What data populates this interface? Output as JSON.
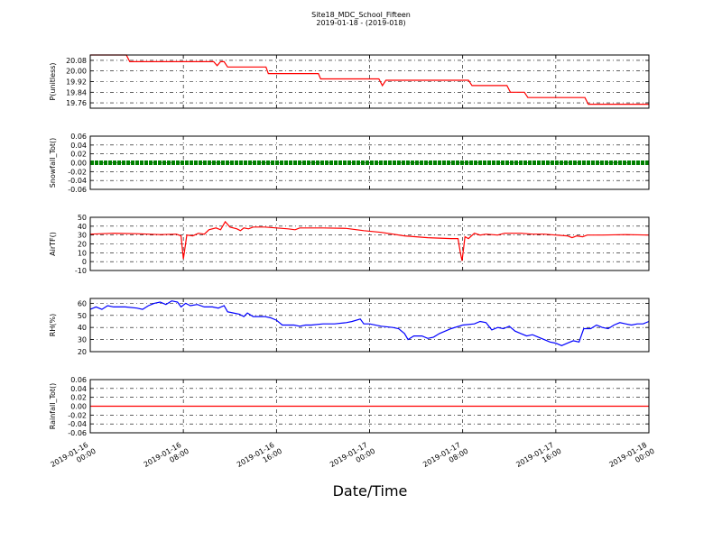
{
  "chart_data": {
    "title": "Site18_MDC_School_Fifteen",
    "subtitle": "2019-01-18 - (2019-018)",
    "xlabel": "Date/Time",
    "x_ticks": [
      "2019-01-16\n00:00",
      "2019-01-16\n08:00",
      "2019-01-16\n16:00",
      "2019-01-17\n00:00",
      "2019-01-17\n08:00",
      "2019-01-17\n16:00",
      "2019-01-18\n00:00"
    ],
    "x_range_hours": [
      0,
      48
    ],
    "grid": true,
    "panels": [
      {
        "type": "line",
        "ylabel": "P(unitless)",
        "color": "#ff0000",
        "ylim": [
          19.72,
          20.12
        ],
        "yticks": [
          19.76,
          19.84,
          19.92,
          20.0,
          20.08
        ],
        "ytick_labels": [
          "19.76",
          "19.84",
          "19.92",
          "20.00",
          "20.08"
        ],
        "points": [
          [
            0,
            20.12
          ],
          [
            3.1,
            20.12
          ],
          [
            3.4,
            20.07
          ],
          [
            10.6,
            20.07
          ],
          [
            10.9,
            20.04
          ],
          [
            11.2,
            20.07
          ],
          [
            11.5,
            20.07
          ],
          [
            11.8,
            20.03
          ],
          [
            15.1,
            20.03
          ],
          [
            15.3,
            19.98
          ],
          [
            19.6,
            19.98
          ],
          [
            19.8,
            19.94
          ],
          [
            24.8,
            19.94
          ],
          [
            25.1,
            19.89
          ],
          [
            25.4,
            19.93
          ],
          [
            32.5,
            19.93
          ],
          [
            32.8,
            19.89
          ],
          [
            35.8,
            19.89
          ],
          [
            36.1,
            19.84
          ],
          [
            37.3,
            19.84
          ],
          [
            37.6,
            19.8
          ],
          [
            42.5,
            19.8
          ],
          [
            42.8,
            19.75
          ],
          [
            48,
            19.75
          ]
        ]
      },
      {
        "type": "line",
        "ylabel": "Snowfall_Tot()",
        "color": "#008000",
        "marker": "square",
        "ylim": [
          -0.06,
          0.06
        ],
        "yticks": [
          -0.06,
          -0.04,
          -0.02,
          0.0,
          0.02,
          0.04,
          0.06
        ],
        "ytick_labels": [
          "-0.06",
          "-0.04",
          "-0.02",
          "0.00",
          "0.02",
          "0.04",
          "0.06"
        ],
        "constant": 0.0
      },
      {
        "type": "line",
        "ylabel": "AirTF()",
        "color": "#ff0000",
        "ylim": [
          -10,
          50
        ],
        "yticks": [
          -10,
          0,
          10,
          20,
          30,
          40,
          50
        ],
        "ytick_labels": [
          "-10",
          "0",
          "10",
          "20",
          "30",
          "40",
          "50"
        ],
        "points": [
          [
            0,
            31
          ],
          [
            2,
            32
          ],
          [
            4,
            31.5
          ],
          [
            6,
            30.5
          ],
          [
            7.4,
            31
          ],
          [
            7.8,
            29
          ],
          [
            8,
            3
          ],
          [
            8.3,
            30
          ],
          [
            8.8,
            29
          ],
          [
            9.3,
            32
          ],
          [
            9.8,
            31
          ],
          [
            10.2,
            36
          ],
          [
            10.8,
            38
          ],
          [
            11.2,
            36
          ],
          [
            11.6,
            45
          ],
          [
            12,
            39
          ],
          [
            12.6,
            37
          ],
          [
            12.9,
            35
          ],
          [
            13.2,
            38
          ],
          [
            13.6,
            37
          ],
          [
            14,
            39
          ],
          [
            15,
            39
          ],
          [
            16,
            38
          ],
          [
            17,
            37
          ],
          [
            17.6,
            36
          ],
          [
            18,
            38
          ],
          [
            20,
            38
          ],
          [
            22,
            37.5
          ],
          [
            23.5,
            35
          ],
          [
            25,
            33
          ],
          [
            27,
            29
          ],
          [
            29,
            27
          ],
          [
            31,
            26
          ],
          [
            31.6,
            26
          ],
          [
            31.8,
            10
          ],
          [
            31.95,
            1
          ],
          [
            32.2,
            28
          ],
          [
            32.5,
            26
          ],
          [
            33,
            32
          ],
          [
            33.5,
            30
          ],
          [
            34,
            31
          ],
          [
            35,
            30
          ],
          [
            35.6,
            32
          ],
          [
            37,
            32
          ],
          [
            38,
            31
          ],
          [
            39,
            31
          ],
          [
            40,
            30
          ],
          [
            41,
            29
          ],
          [
            41.4,
            27
          ],
          [
            41.8,
            29
          ],
          [
            42.3,
            28
          ],
          [
            42.7,
            30
          ],
          [
            44,
            30
          ],
          [
            46,
            30.5
          ],
          [
            48,
            30
          ]
        ]
      },
      {
        "type": "line",
        "ylabel": "RH(%)",
        "color": "#0000ff",
        "ylim": [
          20,
          64
        ],
        "yticks": [
          20,
          30,
          40,
          50,
          60
        ],
        "ytick_labels": [
          "20",
          "30",
          "40",
          "50",
          "60"
        ],
        "points": [
          [
            0,
            55
          ],
          [
            0.5,
            57
          ],
          [
            1,
            55
          ],
          [
            1.5,
            58
          ],
          [
            2,
            57
          ],
          [
            3,
            57
          ],
          [
            4,
            56
          ],
          [
            4.5,
            55
          ],
          [
            5,
            58
          ],
          [
            5.5,
            60
          ],
          [
            6,
            61
          ],
          [
            6.5,
            59
          ],
          [
            7,
            62
          ],
          [
            7.5,
            61
          ],
          [
            7.8,
            57
          ],
          [
            8.2,
            60
          ],
          [
            8.6,
            58
          ],
          [
            9.2,
            59
          ],
          [
            9.8,
            57
          ],
          [
            10.5,
            57
          ],
          [
            11,
            56
          ],
          [
            11.5,
            58
          ],
          [
            11.8,
            53
          ],
          [
            12.3,
            52
          ],
          [
            12.8,
            51
          ],
          [
            13.2,
            49
          ],
          [
            13.5,
            52
          ],
          [
            14,
            49
          ],
          [
            15,
            49
          ],
          [
            15.5,
            48
          ],
          [
            16,
            46
          ],
          [
            16.5,
            42
          ],
          [
            17.5,
            42
          ],
          [
            18,
            41
          ],
          [
            18.5,
            42
          ],
          [
            19,
            42
          ],
          [
            20,
            43
          ],
          [
            21,
            43
          ],
          [
            22,
            44
          ],
          [
            22.5,
            45
          ],
          [
            23.2,
            47
          ],
          [
            23.5,
            43
          ],
          [
            24,
            43
          ],
          [
            25,
            41
          ],
          [
            26,
            40
          ],
          [
            26.5,
            39
          ],
          [
            27,
            35
          ],
          [
            27.3,
            30
          ],
          [
            27.8,
            33
          ],
          [
            28.5,
            33
          ],
          [
            29,
            31
          ],
          [
            29.5,
            32
          ],
          [
            30,
            35
          ],
          [
            31,
            39
          ],
          [
            32,
            42
          ],
          [
            33,
            43
          ],
          [
            33.5,
            45
          ],
          [
            34,
            44
          ],
          [
            34.5,
            38
          ],
          [
            35,
            40
          ],
          [
            35.5,
            39
          ],
          [
            36,
            41
          ],
          [
            36.5,
            37
          ],
          [
            37,
            35
          ],
          [
            37.5,
            33
          ],
          [
            38,
            34
          ],
          [
            38.5,
            32
          ],
          [
            39,
            30
          ],
          [
            39.5,
            28
          ],
          [
            40,
            27
          ],
          [
            40.5,
            25
          ],
          [
            41,
            27
          ],
          [
            41.5,
            29
          ],
          [
            42,
            28
          ],
          [
            42.4,
            39
          ],
          [
            43,
            39
          ],
          [
            43.5,
            42
          ],
          [
            44,
            40
          ],
          [
            44.5,
            39
          ],
          [
            45,
            42
          ],
          [
            45.5,
            44
          ],
          [
            46,
            43
          ],
          [
            46.5,
            42
          ],
          [
            47,
            43
          ],
          [
            47.5,
            43
          ],
          [
            48,
            45
          ]
        ]
      },
      {
        "type": "line",
        "ylabel": "Rainfall_Tot()",
        "color": "#ff0000",
        "ylim": [
          -0.06,
          0.06
        ],
        "yticks": [
          -0.06,
          -0.04,
          -0.02,
          0.0,
          0.02,
          0.04,
          0.06
        ],
        "ytick_labels": [
          "-0.06",
          "-0.04",
          "-0.02",
          "0.00",
          "0.02",
          "0.04",
          "0.06"
        ],
        "constant": 0.0
      }
    ]
  }
}
